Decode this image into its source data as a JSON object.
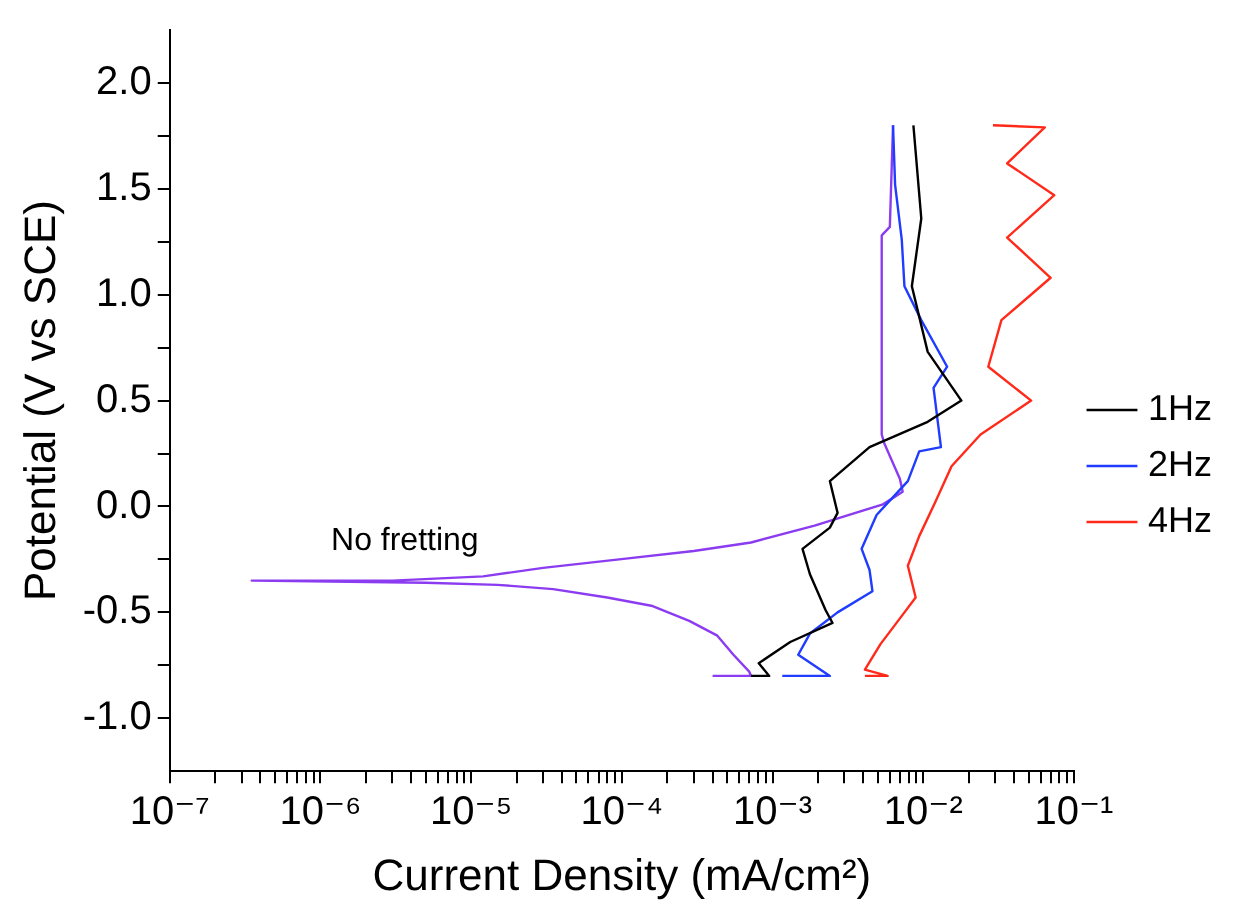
{
  "chart_data": {
    "type": "line",
    "xlabel": "Current Density (mA/cm²)",
    "ylabel": "Potential (V vs SCE)",
    "log": "x",
    "legend": "right",
    "marker": "none",
    "xlim": [
      1e-07,
      0.1
    ],
    "xticks": [
      {
        "value": 1e-07,
        "label": "10⁻⁷"
      },
      {
        "value": 2e-07,
        "label": null
      },
      {
        "value": 3e-07,
        "label": null
      },
      {
        "value": 4e-07,
        "label": null
      },
      {
        "value": 5e-07,
        "label": null
      },
      {
        "value": 6e-07,
        "label": null
      },
      {
        "value": 7e-07,
        "label": null
      },
      {
        "value": 8e-07,
        "label": null
      },
      {
        "value": 9e-07,
        "label": null
      },
      {
        "value": 1e-06,
        "label": "10⁻⁶"
      },
      {
        "value": 2e-06,
        "label": null
      },
      {
        "value": 3e-06,
        "label": null
      },
      {
        "value": 4e-06,
        "label": null
      },
      {
        "value": 5e-06,
        "label": null
      },
      {
        "value": 6e-06,
        "label": null
      },
      {
        "value": 7e-06,
        "label": null
      },
      {
        "value": 8e-06,
        "label": null
      },
      {
        "value": 9e-06,
        "label": null
      },
      {
        "value": 1e-05,
        "label": "10⁻⁵"
      },
      {
        "value": 2e-05,
        "label": null
      },
      {
        "value": 3e-05,
        "label": null
      },
      {
        "value": 4e-05,
        "label": null
      },
      {
        "value": 5e-05,
        "label": null
      },
      {
        "value": 6e-05,
        "label": null
      },
      {
        "value": 7e-05,
        "label": null
      },
      {
        "value": 8e-05,
        "label": null
      },
      {
        "value": 9e-05,
        "label": null
      },
      {
        "value": 0.0001,
        "label": "10⁻⁴"
      },
      {
        "value": 0.0002,
        "label": null
      },
      {
        "value": 0.0003,
        "label": null
      },
      {
        "value": 0.0004,
        "label": null
      },
      {
        "value": 0.0005,
        "label": null
      },
      {
        "value": 0.0006,
        "label": null
      },
      {
        "value": 0.0007,
        "label": null
      },
      {
        "value": 0.0008,
        "label": null
      },
      {
        "value": 0.0009,
        "label": null
      },
      {
        "value": 0.001,
        "label": "10⁻³"
      },
      {
        "value": 0.002,
        "label": null
      },
      {
        "value": 0.003,
        "label": null
      },
      {
        "value": 0.004,
        "label": null
      },
      {
        "value": 0.005,
        "label": null
      },
      {
        "value": 0.006,
        "label": null
      },
      {
        "value": 0.007,
        "label": null
      },
      {
        "value": 0.008,
        "label": null
      },
      {
        "value": 0.009,
        "label": null
      },
      {
        "value": 0.01,
        "label": "10⁻²"
      },
      {
        "value": 0.02,
        "label": null
      },
      {
        "value": 0.03,
        "label": null
      },
      {
        "value": 0.04,
        "label": null
      },
      {
        "value": 0.05,
        "label": null
      },
      {
        "value": 0.06,
        "label": null
      },
      {
        "value": 0.07,
        "label": null
      },
      {
        "value": 0.08,
        "label": null
      },
      {
        "value": 0.09,
        "label": null
      },
      {
        "value": 0.1,
        "label": "10⁻¹"
      }
    ],
    "ylim": [
      -1.25,
      2.25
    ],
    "yticks": [
      {
        "value": -1,
        "label": "-1.0"
      },
      {
        "value": -0.75,
        "label": null
      },
      {
        "value": -0.5,
        "label": "-0.5"
      },
      {
        "value": -0.25,
        "label": null
      },
      {
        "value": 0,
        "label": "0.0"
      },
      {
        "value": 0.25,
        "label": null
      },
      {
        "value": 0.5,
        "label": "0.5"
      },
      {
        "value": 0.75,
        "label": null
      },
      {
        "value": 1,
        "label": "1.0"
      },
      {
        "value": 1.25,
        "label": null
      },
      {
        "value": 1.5,
        "label": "1.5"
      },
      {
        "value": 1.75,
        "label": null
      },
      {
        "value": 2,
        "label": "2.0"
      }
    ],
    "annotations": [
      "No fretting"
    ],
    "series": [
      {
        "name": "1Hz",
        "color": "#000000",
        "x": [
          0.00072,
          0.00095,
          0.00081,
          0.00131,
          0.0025,
          0.00225,
          0.00177,
          0.00158,
          0.0024,
          0.0027,
          0.0024,
          0.0044,
          0.0107,
          0.0179,
          0.0107,
          0.0084,
          0.0097,
          0.0086
        ],
        "values": [
          -0.8,
          -0.8,
          -0.74,
          -0.64,
          -0.55,
          -0.49,
          -0.32,
          -0.2,
          -0.1,
          -0.03,
          0.12,
          0.28,
          0.4,
          0.5,
          0.73,
          1.04,
          1.36,
          1.8
        ]
      },
      {
        "name": "2Hz",
        "color": "#1f3cff",
        "x": [
          0.00116,
          0.0024,
          0.00148,
          0.00177,
          0.0027,
          0.0046,
          0.0044,
          0.0039,
          0.0049,
          0.0079,
          0.0094,
          0.0131,
          0.0117,
          0.0144,
          0.0097,
          0.0075,
          0.0072,
          0.0065,
          0.0063
        ],
        "values": [
          -0.8,
          -0.8,
          -0.7,
          -0.6,
          -0.5,
          -0.4,
          -0.3,
          -0.2,
          -0.04,
          0.12,
          0.26,
          0.28,
          0.56,
          0.66,
          0.88,
          1.04,
          1.26,
          1.52,
          1.8
        ]
      },
      {
        "name": "4Hz",
        "color": "#ff2a1a",
        "x": [
          0.0041,
          0.0058,
          0.0041,
          0.0052,
          0.0075,
          0.0089,
          0.0079,
          0.0094,
          0.012,
          0.0154,
          0.024,
          0.052,
          0.027,
          0.033,
          0.07,
          0.036,
          0.074,
          0.036,
          0.064,
          0.029
        ],
        "values": [
          -0.8,
          -0.8,
          -0.77,
          -0.65,
          -0.5,
          -0.43,
          -0.28,
          -0.14,
          0.02,
          0.19,
          0.34,
          0.5,
          0.66,
          0.88,
          1.08,
          1.27,
          1.47,
          1.62,
          1.79,
          1.8
        ]
      },
      {
        "color": "#8c3cf0",
        "x": [
          0.0004,
          0.00072,
          0.0007,
          0.00055,
          0.00043,
          0.00028,
          0.00016,
          8e-05,
          3.5e-05,
          1.5e-05,
          5e-06,
          3.5e-07,
          3e-06,
          1.2e-05,
          3e-05,
          9.6e-05,
          0.0003,
          0.00072,
          0.0019,
          0.0054,
          0.0073,
          0.007,
          0.0055,
          0.0053,
          0.0053,
          0.006,
          0.0063
        ],
        "values": [
          -0.8,
          -0.8,
          -0.78,
          -0.7,
          -0.61,
          -0.54,
          -0.47,
          -0.43,
          -0.39,
          -0.37,
          -0.36,
          -0.35,
          -0.35,
          -0.33,
          -0.29,
          -0.25,
          -0.21,
          -0.17,
          -0.09,
          0.01,
          0.07,
          0.13,
          0.3,
          0.34,
          1.28,
          1.32,
          1.8
        ]
      }
    ]
  }
}
